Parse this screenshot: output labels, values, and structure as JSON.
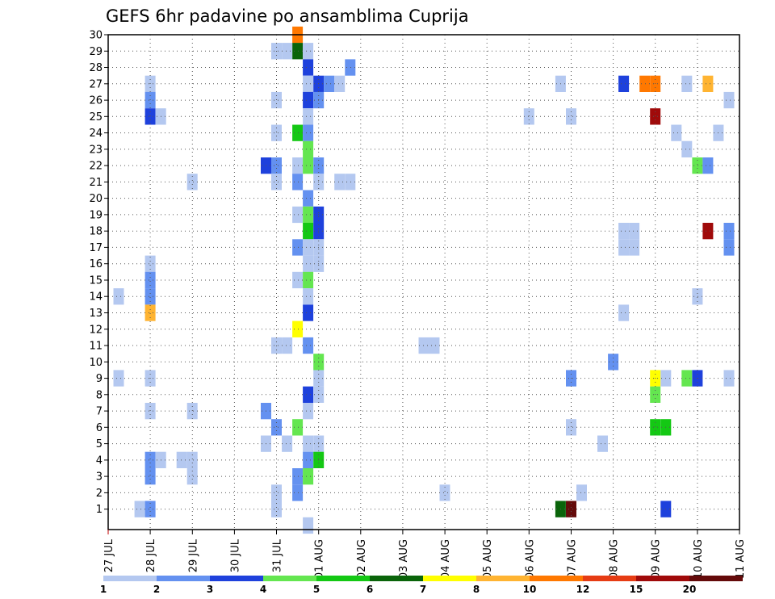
{
  "chart_data": {
    "type": "heatmap",
    "title": "GEFS 6hr padavine po ansamblima Cuprija",
    "xlabel": "",
    "ylabel": "",
    "y_ticks": [
      1,
      2,
      3,
      4,
      5,
      6,
      7,
      8,
      9,
      10,
      11,
      12,
      13,
      14,
      15,
      16,
      17,
      18,
      19,
      20,
      21,
      22,
      23,
      24,
      25,
      26,
      27,
      28,
      29,
      30
    ],
    "x_ticks": [
      "27 JUL",
      "28 JUL",
      "29 JUL",
      "30 JUL",
      "31 JUL",
      "01 AUG",
      "02 AUG",
      "03 AUG",
      "04 AUG",
      "05 AUG",
      "06 AUG",
      "07 AUG",
      "08 AUG",
      "09 AUG",
      "10 AUG",
      "11 AUG"
    ],
    "x_unit": "days since 27 JUL",
    "legend_levels": [
      "1",
      "2",
      "3",
      "4",
      "5",
      "6",
      "7",
      "8",
      "10",
      "12",
      "15",
      "20"
    ],
    "legend_colors": [
      "#b4c8f0",
      "#6491f0",
      "#1e41dc",
      "#64e650",
      "#14c814",
      "#0a640a",
      "#ffff00",
      "#ffb432",
      "#ff7800",
      "#e63c14",
      "#a00a0a",
      "#640a0a"
    ],
    "grid": true,
    "cells": [
      {
        "x": 4.5,
        "y": 30,
        "c": 8
      },
      {
        "x": 4.5,
        "y": 29,
        "c": 5
      },
      {
        "x": 4.25,
        "y": 29,
        "c": 0
      },
      {
        "x": 4.0,
        "y": 29,
        "c": 0
      },
      {
        "x": 4.75,
        "y": 29,
        "c": 0
      },
      {
        "x": 4.75,
        "y": 28,
        "c": 2
      },
      {
        "x": 5.75,
        "y": 28,
        "c": 1
      },
      {
        "x": 1.0,
        "y": 27,
        "c": 0
      },
      {
        "x": 4.75,
        "y": 27,
        "c": 0
      },
      {
        "x": 5.0,
        "y": 27,
        "c": 2
      },
      {
        "x": 5.25,
        "y": 27,
        "c": 1
      },
      {
        "x": 5.5,
        "y": 27,
        "c": 0
      },
      {
        "x": 10.75,
        "y": 27,
        "c": 0
      },
      {
        "x": 12.25,
        "y": 27,
        "c": 2
      },
      {
        "x": 12.75,
        "y": 27,
        "c": 8
      },
      {
        "x": 13.0,
        "y": 27,
        "c": 8
      },
      {
        "x": 13.75,
        "y": 27,
        "c": 0
      },
      {
        "x": 14.25,
        "y": 27,
        "c": 7
      },
      {
        "x": 1.0,
        "y": 26,
        "c": 1
      },
      {
        "x": 4.0,
        "y": 26,
        "c": 0
      },
      {
        "x": 4.75,
        "y": 26,
        "c": 2
      },
      {
        "x": 5.0,
        "y": 26,
        "c": 1
      },
      {
        "x": 14.75,
        "y": 26,
        "c": 0
      },
      {
        "x": 1.0,
        "y": 25,
        "c": 2
      },
      {
        "x": 1.25,
        "y": 25,
        "c": 0
      },
      {
        "x": 4.75,
        "y": 25,
        "c": 0
      },
      {
        "x": 10.0,
        "y": 25,
        "c": 0
      },
      {
        "x": 11.0,
        "y": 25,
        "c": 0
      },
      {
        "x": 13.0,
        "y": 25,
        "c": 10
      },
      {
        "x": 4.0,
        "y": 24,
        "c": 0
      },
      {
        "x": 4.5,
        "y": 24,
        "c": 4
      },
      {
        "x": 4.75,
        "y": 24,
        "c": 1
      },
      {
        "x": 13.5,
        "y": 24,
        "c": 0
      },
      {
        "x": 14.5,
        "y": 24,
        "c": 0
      },
      {
        "x": 4.75,
        "y": 23,
        "c": 3
      },
      {
        "x": 13.75,
        "y": 23,
        "c": 0
      },
      {
        "x": 3.75,
        "y": 22,
        "c": 2
      },
      {
        "x": 4.0,
        "y": 22,
        "c": 1
      },
      {
        "x": 4.5,
        "y": 22,
        "c": 0
      },
      {
        "x": 4.75,
        "y": 22,
        "c": 3
      },
      {
        "x": 5.0,
        "y": 22,
        "c": 1
      },
      {
        "x": 14.0,
        "y": 22,
        "c": 3
      },
      {
        "x": 14.25,
        "y": 22,
        "c": 1
      },
      {
        "x": 2.0,
        "y": 21,
        "c": 0
      },
      {
        "x": 4.0,
        "y": 21,
        "c": 0
      },
      {
        "x": 4.5,
        "y": 21,
        "c": 1
      },
      {
        "x": 5.0,
        "y": 21,
        "c": 0
      },
      {
        "x": 5.5,
        "y": 21,
        "c": 0
      },
      {
        "x": 5.75,
        "y": 21,
        "c": 0
      },
      {
        "x": 4.75,
        "y": 20,
        "c": 1
      },
      {
        "x": 4.5,
        "y": 19,
        "c": 0
      },
      {
        "x": 4.75,
        "y": 19,
        "c": 3
      },
      {
        "x": 5.0,
        "y": 19,
        "c": 2
      },
      {
        "x": 4.75,
        "y": 18,
        "c": 4
      },
      {
        "x": 5.0,
        "y": 18,
        "c": 2
      },
      {
        "x": 12.25,
        "y": 18,
        "c": 0
      },
      {
        "x": 12.5,
        "y": 18,
        "c": 0
      },
      {
        "x": 14.25,
        "y": 18,
        "c": 10
      },
      {
        "x": 14.75,
        "y": 18,
        "c": 1
      },
      {
        "x": 4.5,
        "y": 17,
        "c": 1
      },
      {
        "x": 4.75,
        "y": 17,
        "c": 0
      },
      {
        "x": 5.0,
        "y": 17,
        "c": 0
      },
      {
        "x": 12.25,
        "y": 17,
        "c": 0
      },
      {
        "x": 12.5,
        "y": 17,
        "c": 0
      },
      {
        "x": 14.75,
        "y": 17,
        "c": 1
      },
      {
        "x": 1.0,
        "y": 16,
        "c": 0
      },
      {
        "x": 4.75,
        "y": 16,
        "c": 0
      },
      {
        "x": 5.0,
        "y": 16,
        "c": 0
      },
      {
        "x": 1.0,
        "y": 15,
        "c": 1
      },
      {
        "x": 4.5,
        "y": 15,
        "c": 0
      },
      {
        "x": 4.75,
        "y": 15,
        "c": 3
      },
      {
        "x": 0.25,
        "y": 14,
        "c": 0
      },
      {
        "x": 1.0,
        "y": 14,
        "c": 1
      },
      {
        "x": 4.75,
        "y": 14,
        "c": 0
      },
      {
        "x": 14.0,
        "y": 14,
        "c": 0
      },
      {
        "x": 1.0,
        "y": 13,
        "c": 7
      },
      {
        "x": 4.75,
        "y": 13,
        "c": 2
      },
      {
        "x": 12.25,
        "y": 13,
        "c": 0
      },
      {
        "x": 4.5,
        "y": 12,
        "c": 6
      },
      {
        "x": 4.0,
        "y": 11,
        "c": 0
      },
      {
        "x": 4.25,
        "y": 11,
        "c": 0
      },
      {
        "x": 4.75,
        "y": 11,
        "c": 1
      },
      {
        "x": 7.5,
        "y": 11,
        "c": 0
      },
      {
        "x": 7.75,
        "y": 11,
        "c": 0
      },
      {
        "x": 5.0,
        "y": 10,
        "c": 3
      },
      {
        "x": 12.0,
        "y": 10,
        "c": 1
      },
      {
        "x": 0.25,
        "y": 9,
        "c": 0
      },
      {
        "x": 1.0,
        "y": 9,
        "c": 0
      },
      {
        "x": 5.0,
        "y": 9,
        "c": 0
      },
      {
        "x": 11.0,
        "y": 9,
        "c": 1
      },
      {
        "x": 13.0,
        "y": 9,
        "c": 6
      },
      {
        "x": 13.25,
        "y": 9,
        "c": 0
      },
      {
        "x": 13.75,
        "y": 9,
        "c": 3
      },
      {
        "x": 14.0,
        "y": 9,
        "c": 2
      },
      {
        "x": 14.75,
        "y": 9,
        "c": 0
      },
      {
        "x": 4.75,
        "y": 8,
        "c": 2
      },
      {
        "x": 5.0,
        "y": 8,
        "c": 0
      },
      {
        "x": 13.0,
        "y": 8,
        "c": 3
      },
      {
        "x": 1.0,
        "y": 7,
        "c": 0
      },
      {
        "x": 2.0,
        "y": 7,
        "c": 0
      },
      {
        "x": 3.75,
        "y": 7,
        "c": 1
      },
      {
        "x": 4.75,
        "y": 7,
        "c": 0
      },
      {
        "x": 4.0,
        "y": 6,
        "c": 1
      },
      {
        "x": 4.5,
        "y": 6,
        "c": 3
      },
      {
        "x": 11.0,
        "y": 6,
        "c": 0
      },
      {
        "x": 13.0,
        "y": 6,
        "c": 4
      },
      {
        "x": 13.25,
        "y": 6,
        "c": 4
      },
      {
        "x": 3.75,
        "y": 5,
        "c": 0
      },
      {
        "x": 4.25,
        "y": 5,
        "c": 0
      },
      {
        "x": 4.75,
        "y": 5,
        "c": 0
      },
      {
        "x": 5.0,
        "y": 5,
        "c": 0
      },
      {
        "x": 11.75,
        "y": 5,
        "c": 0
      },
      {
        "x": 1.0,
        "y": 4,
        "c": 1
      },
      {
        "x": 1.25,
        "y": 4,
        "c": 0
      },
      {
        "x": 1.75,
        "y": 4,
        "c": 0
      },
      {
        "x": 2.0,
        "y": 4,
        "c": 0
      },
      {
        "x": 4.75,
        "y": 4,
        "c": 1
      },
      {
        "x": 5.0,
        "y": 4,
        "c": 4
      },
      {
        "x": 1.0,
        "y": 3,
        "c": 1
      },
      {
        "x": 2.0,
        "y": 3,
        "c": 0
      },
      {
        "x": 4.5,
        "y": 3,
        "c": 1
      },
      {
        "x": 4.75,
        "y": 3,
        "c": 3
      },
      {
        "x": 4.0,
        "y": 2,
        "c": 0
      },
      {
        "x": 4.5,
        "y": 2,
        "c": 1
      },
      {
        "x": 8.0,
        "y": 2,
        "c": 0
      },
      {
        "x": 11.25,
        "y": 2,
        "c": 0
      },
      {
        "x": 0.75,
        "y": 1,
        "c": 0
      },
      {
        "x": 1.0,
        "y": 1,
        "c": 1
      },
      {
        "x": 4.0,
        "y": 1,
        "c": 0
      },
      {
        "x": 10.75,
        "y": 1,
        "c": 5
      },
      {
        "x": 11.0,
        "y": 1,
        "c": 11
      },
      {
        "x": 13.25,
        "y": 1,
        "c": 2
      },
      {
        "x": 4.75,
        "y": 0,
        "c": 0
      }
    ]
  }
}
